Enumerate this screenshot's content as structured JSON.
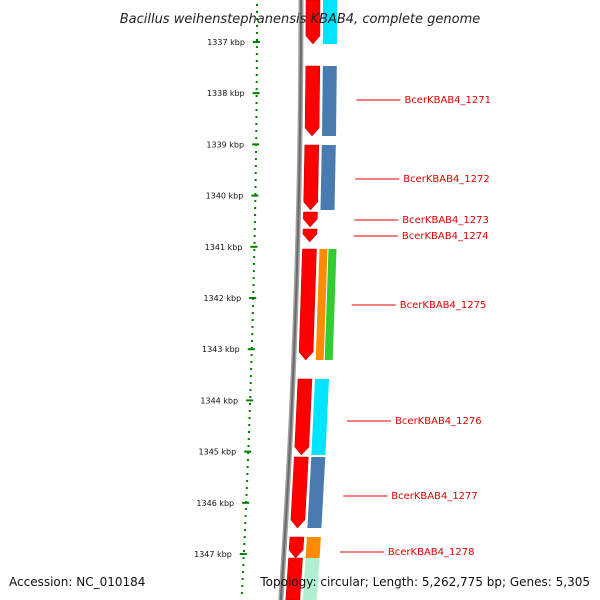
{
  "title": "Bacillus weihenstephanensis KBAB4, complete genome",
  "accession": "Accession: NC_010184",
  "topology": "Topology: circular; Length: 5,262,775 bp; Genes: 5,305",
  "colors": {
    "cds": "#ff0000",
    "backbone": "#808080",
    "ticks": "#008000",
    "label": "#e00000",
    "cog_cyan": "#00e5ff",
    "cog_steelblue": "#4a7bb0",
    "cog_orange": "#ff8c00",
    "cog_green": "#33cc33",
    "cog_mint": "#b0f0d0"
  },
  "scale_labels": [
    "1337 kbp",
    "1338 kbp",
    "1339 kbp",
    "1340 kbp",
    "1341 kbp",
    "1342 kbp",
    "1343 kbp",
    "1344 kbp",
    "1345 kbp",
    "1346 kbp",
    "1347 kbp"
  ],
  "gene_labels": [
    "BcerKBAB4_1271",
    "BcerKBAB4_1272",
    "BcerKBAB4_1273",
    "BcerKBAB4_1274",
    "BcerKBAB4_1275",
    "BcerKBAB4_1276",
    "BcerKBAB4_1277",
    "BcerKBAB4_1278"
  ]
}
